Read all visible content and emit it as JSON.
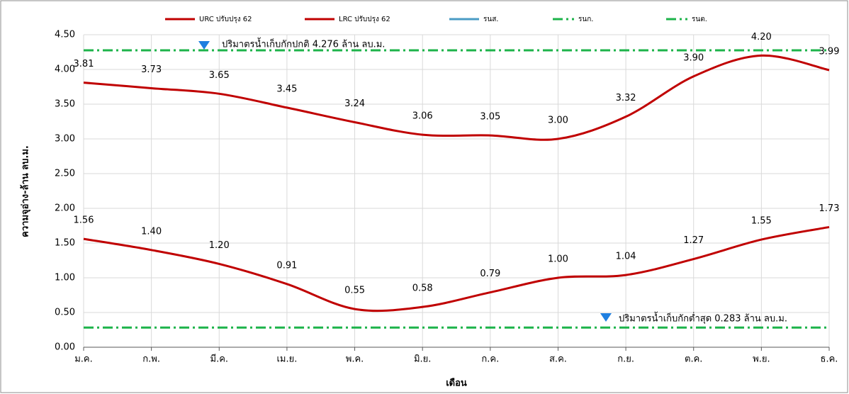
{
  "chart_data": {
    "type": "line",
    "x_label": "เดือน",
    "y_label": "ความจุอ่าง-ล้าน ลบ.ม.",
    "categories": [
      "ม.ค.",
      "ก.พ.",
      "มี.ค.",
      "เม.ย.",
      "พ.ค.",
      "มิ.ย.",
      "ก.ค.",
      "ส.ค.",
      "ก.ย.",
      "ต.ค.",
      "พ.ย.",
      "ธ.ค."
    ],
    "series": [
      {
        "name": "URC ปรับปรุง 62",
        "color": "#c00000",
        "style": "solid",
        "values": [
          3.81,
          3.73,
          3.65,
          3.45,
          3.24,
          3.06,
          3.05,
          3.0,
          3.32,
          3.9,
          4.2,
          3.99
        ],
        "value_labels": [
          "3.81",
          "3.73",
          "3.65",
          "3.45",
          "3.24",
          "3.06",
          "3.05",
          "3.00",
          "3.32",
          "3.90",
          "4.20",
          "3.99"
        ]
      },
      {
        "name": "LRC ปรับปรุง 62",
        "color": "#c00000",
        "style": "solid",
        "values": [
          1.56,
          1.4,
          1.2,
          0.91,
          0.55,
          0.58,
          0.79,
          1.0,
          1.04,
          1.27,
          1.55,
          1.73
        ],
        "value_labels": [
          "1.56",
          "1.40",
          "1.20",
          "0.91",
          "0.55",
          "0.58",
          "0.79",
          "1.00",
          "1.04",
          "1.27",
          "1.55",
          "1.73"
        ]
      },
      {
        "name": "รนส.",
        "color": "#4a9bc4",
        "style": "solid",
        "values": [
          null,
          null,
          null,
          null,
          null,
          null,
          null,
          null,
          null,
          null,
          null,
          null
        ]
      },
      {
        "name": "รนก.",
        "color": "#1db34a",
        "style": "dashdot",
        "values": [
          4.276,
          4.276,
          4.276,
          4.276,
          4.276,
          4.276,
          4.276,
          4.276,
          4.276,
          4.276,
          4.276,
          4.276
        ]
      },
      {
        "name": "รนต.",
        "color": "#1db34a",
        "style": "dashdot",
        "values": [
          0.283,
          0.283,
          0.283,
          0.283,
          0.283,
          0.283,
          0.283,
          0.283,
          0.283,
          0.283,
          0.283,
          0.283
        ]
      }
    ],
    "annotations": [
      {
        "text": "ปริมาตรน้ำเก็บกักปกติ  4.276 ล้าน ลบ.ม."
      },
      {
        "text": "ปริมาตรน้ำเก็บกักต่ำสุด 0.283 ล้าน ลบ.ม."
      }
    ],
    "ylim": [
      0,
      4.5
    ],
    "yticks": [
      {
        "value": 0,
        "label": "0.00"
      },
      {
        "value": 0.5,
        "label": "0.50"
      },
      {
        "value": 1,
        "label": "1.00"
      },
      {
        "value": 1.5,
        "label": "1.50"
      },
      {
        "value": 2,
        "label": "2.00"
      },
      {
        "value": 2.5,
        "label": "2.50"
      },
      {
        "value": 3,
        "label": "3.00"
      },
      {
        "value": 3.5,
        "label": "3.50"
      },
      {
        "value": 4,
        "label": "4.00"
      },
      {
        "value": 4.5,
        "label": "4.50"
      }
    ],
    "grid": true,
    "legend": "top"
  }
}
